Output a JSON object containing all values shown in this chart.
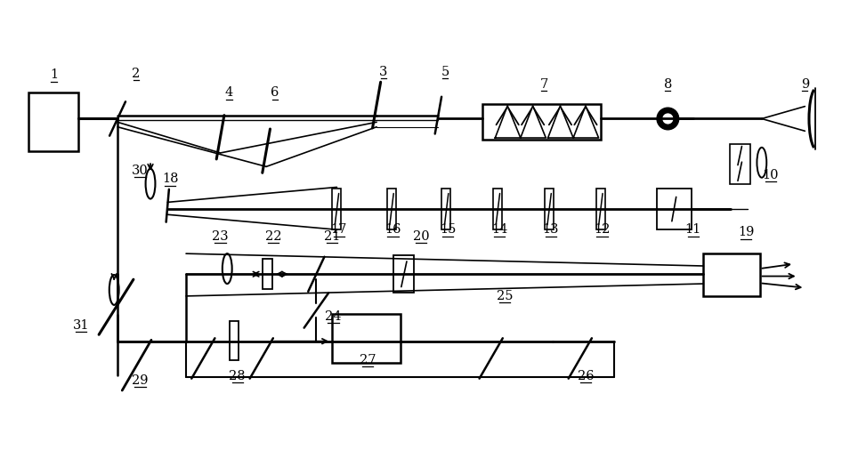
{
  "bg": "#ffffff",
  "lc": "#000000",
  "fw": 12.4,
  "fh": 6.57,
  "dpi": 100
}
